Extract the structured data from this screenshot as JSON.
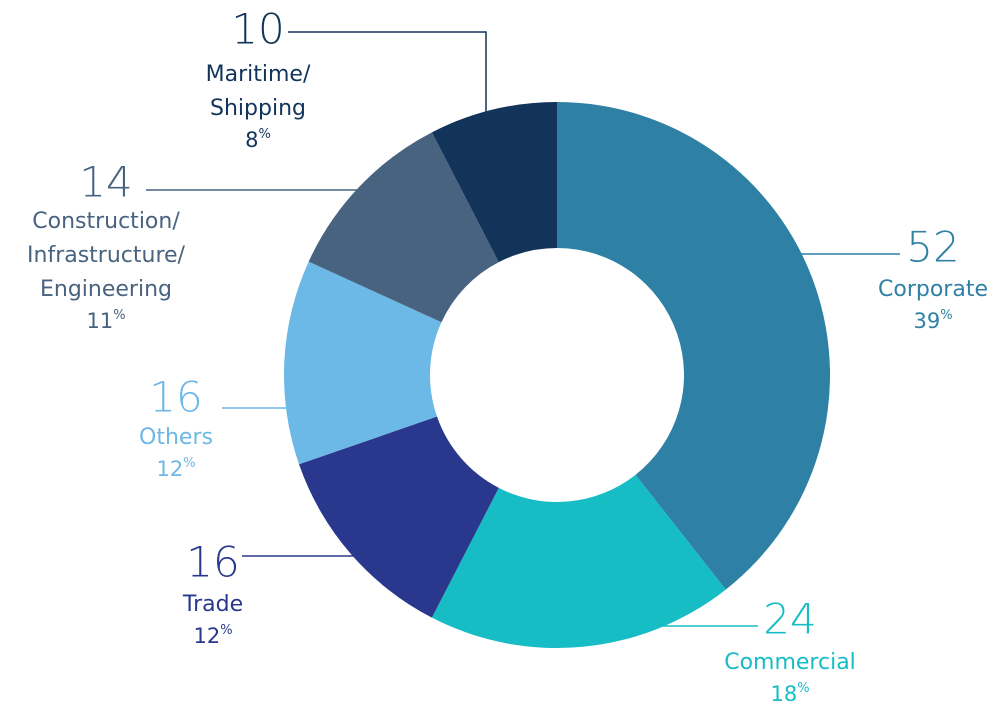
{
  "chart_data": {
    "type": "donut",
    "categories": [
      [
        "Corporate"
      ],
      [
        "Commercial"
      ],
      [
        "Trade"
      ],
      [
        "Others"
      ],
      [
        "Construction/",
        "Infrastructure/",
        "Engineering"
      ],
      [
        "Maritime/",
        "Shipping"
      ]
    ],
    "values": [
      52,
      24,
      16,
      16,
      14,
      10
    ],
    "percents": [
      39,
      18,
      12,
      12,
      11,
      8
    ],
    "percent_unit": "%",
    "colors": [
      "#2e80a4",
      "#16bdc4",
      "#29388d",
      "#6cb8e6",
      "#48637f",
      "#12345a"
    ]
  }
}
